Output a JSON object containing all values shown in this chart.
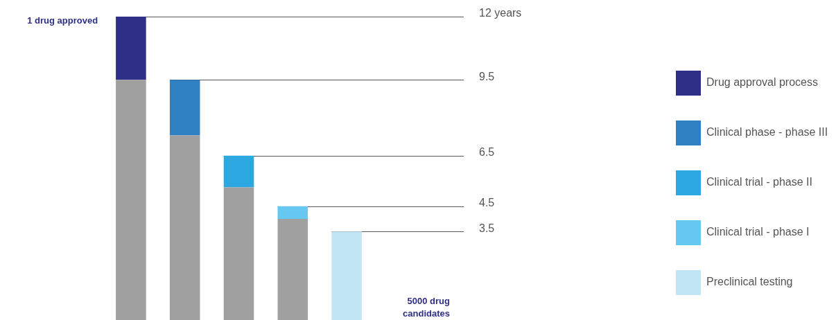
{
  "chart_data": {
    "type": "bar",
    "stacked": true,
    "categories": [
      null,
      null,
      null,
      null,
      null
    ],
    "series": [
      {
        "color": "#a0a0a0",
        "values": [
          9.5,
          7.3,
          5.25,
          4.0,
          null
        ]
      },
      {
        "name": "Drug approval process",
        "color": "#2e3087",
        "values": [
          2.5,
          null,
          null,
          null,
          null
        ]
      },
      {
        "name": "Clinical phase - phase III",
        "color": "#2f7fc3",
        "values": [
          null,
          2.2,
          null,
          null,
          null
        ]
      },
      {
        "name": "Clinical trial - phase II",
        "color": "#2da7df",
        "values": [
          null,
          null,
          1.25,
          null,
          null
        ]
      },
      {
        "name": "Clinical trial - phase I",
        "color": "#66c8f0",
        "values": [
          null,
          null,
          null,
          0.5,
          null
        ]
      },
      {
        "name": "Preclinical testing",
        "color": "#c2e5f4",
        "values": [
          null,
          null,
          null,
          null,
          3.5
        ]
      }
    ],
    "ylim": [
      0,
      12
    ],
    "legend": "right",
    "ref_lines": [
      {
        "axis": "y",
        "value": 12,
        "label": "12 years",
        "color": "#555555"
      },
      {
        "axis": "y",
        "value": 9.5,
        "label": "9.5",
        "color": "#555555"
      },
      {
        "axis": "y",
        "value": 6.5,
        "label": "6.5",
        "color": "#555555"
      },
      {
        "axis": "y",
        "value": 4.5,
        "label": "4.5",
        "color": "#555555"
      },
      {
        "axis": "y",
        "value": 3.5,
        "label": "3.5",
        "color": "#555555"
      }
    ],
    "annotations": [
      "1 drug approved",
      "5000 drug candidates"
    ]
  }
}
